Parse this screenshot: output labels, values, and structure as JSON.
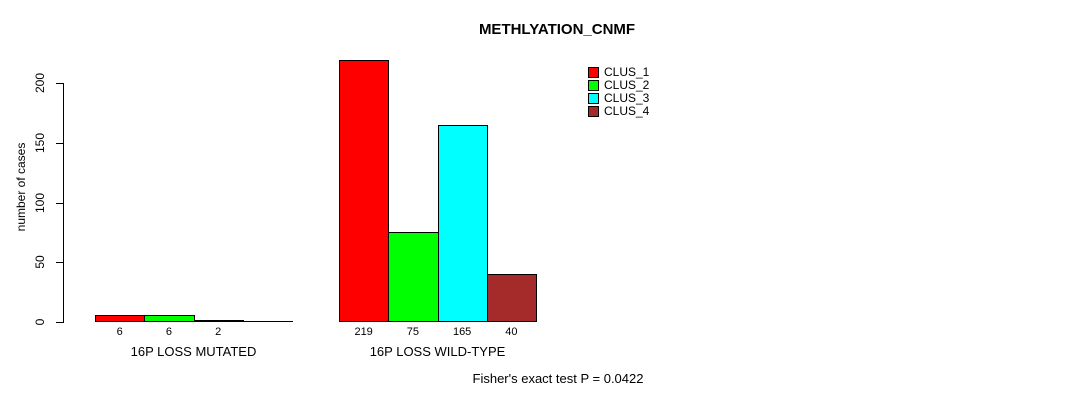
{
  "chart_data": {
    "type": "bar",
    "title": "METHLYATION_CNMF",
    "ylabel": "number of cases",
    "annotation": "Fisher's exact test P = 0.0422",
    "yticks": [
      0,
      50,
      100,
      150,
      200
    ],
    "ylim": [
      0,
      225
    ],
    "grid": false,
    "legend_position": "top-right-of-plot",
    "categories": [
      "16P LOSS MUTATED",
      "16P LOSS WILD-TYPE"
    ],
    "series": [
      {
        "name": "CLUS_1",
        "color": "#FF0000",
        "values": [
          6,
          219
        ]
      },
      {
        "name": "CLUS_2",
        "color": "#00FF00",
        "values": [
          6,
          75
        ]
      },
      {
        "name": "CLUS_3",
        "color": "#00FFFF",
        "values": [
          2,
          165
        ]
      },
      {
        "name": "CLUS_4",
        "color": "#A52A2A",
        "values": [
          0,
          40
        ]
      }
    ],
    "bar_value_labels": [
      [
        "6",
        "6",
        "2",
        ""
      ],
      [
        "219",
        "75",
        "165",
        "40"
      ]
    ],
    "colors": {
      "background": "#FFFFFF",
      "axis": "#000000",
      "text": "#000000"
    }
  }
}
